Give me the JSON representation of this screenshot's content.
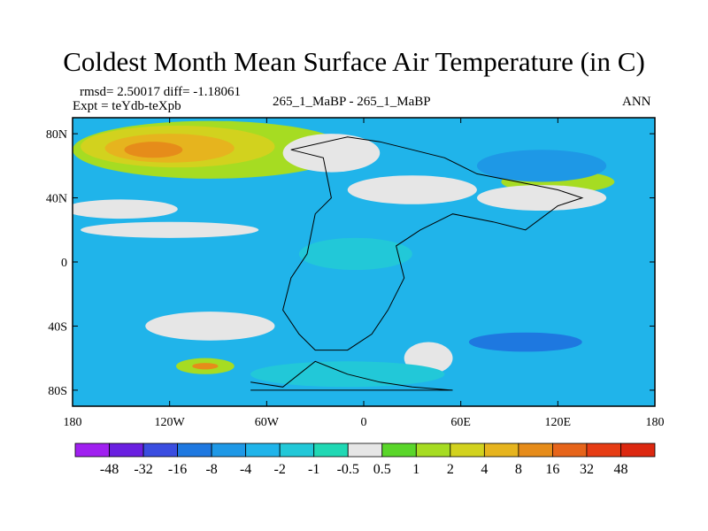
{
  "chart_data": {
    "type": "heatmap",
    "title": "Coldest Month Mean Surface Air Temperature (in C)",
    "stats_line": "rmsd= 2.50017  diff= -1.18061",
    "expt_line": "Expt = teYdb-teXpb",
    "center_label": "265_1_MaBP - 265_1_MaBP",
    "right_label": "ANN",
    "x_axis": {
      "range": [
        -180,
        180
      ],
      "ticks": [
        {
          "value": -180,
          "label": "180"
        },
        {
          "value": -120,
          "label": "120W"
        },
        {
          "value": -60,
          "label": "60W"
        },
        {
          "value": 0,
          "label": "0"
        },
        {
          "value": 60,
          "label": "60E"
        },
        {
          "value": 120,
          "label": "120E"
        },
        {
          "value": 180,
          "label": "180"
        }
      ]
    },
    "y_axis": {
      "range": [
        -90,
        90
      ],
      "ticks": [
        {
          "value": 80,
          "label": "80N"
        },
        {
          "value": 40,
          "label": "40N"
        },
        {
          "value": 0,
          "label": "0"
        },
        {
          "value": -40,
          "label": "40S"
        },
        {
          "value": -80,
          "label": "80S"
        }
      ]
    },
    "colorbar": {
      "levels": [
        "-48",
        "-32",
        "-16",
        "-8",
        "-4",
        "-2",
        "-1",
        "-0.5",
        "0.5",
        "1",
        "2",
        "4",
        "8",
        "16",
        "32",
        "48"
      ],
      "colors": [
        "#a020f0",
        "#6a1fe0",
        "#3a4de0",
        "#1e78e0",
        "#1e98e6",
        "#20b4ea",
        "#22c8d8",
        "#20d8b4",
        "#e6e6e6",
        "#5ad62a",
        "#a6dc22",
        "#d2d21e",
        "#e6b41e",
        "#e68c1a",
        "#e6641a",
        "#e63c14",
        "#dc2810"
      ]
    },
    "field": {
      "background_color": "#20b4ea",
      "regions": [
        {
          "name": "north-atlantic-warm",
          "color": "#a6dc22",
          "lon": -95,
          "lat": 70,
          "lon_radius": 85,
          "lat_radius": 18
        },
        {
          "name": "north-atlantic-yellow",
          "color": "#d2d21e",
          "lon": -115,
          "lat": 72,
          "lon_radius": 60,
          "lat_radius": 13
        },
        {
          "name": "north-atlantic-orange",
          "color": "#e6b41e",
          "lon": -120,
          "lat": 71,
          "lon_radius": 40,
          "lat_radius": 9
        },
        {
          "name": "north-atlantic-hot",
          "color": "#e68c1a",
          "lon": -130,
          "lat": 70,
          "lon_radius": 18,
          "lat_radius": 5
        },
        {
          "name": "arctic-neutral-band",
          "color": "#e6e6e6",
          "lon": -20,
          "lat": 68,
          "lon_radius": 30,
          "lat_radius": 12
        },
        {
          "name": "north-band-neutral",
          "color": "#e6e6e6",
          "lon": -150,
          "lat": 33,
          "lon_radius": 35,
          "lat_radius": 6
        },
        {
          "name": "mid-north-neutral",
          "color": "#e6e6e6",
          "lon": -120,
          "lat": 20,
          "lon_radius": 55,
          "lat_radius": 5
        },
        {
          "name": "east-north-green",
          "color": "#a6dc22",
          "lon": 120,
          "lat": 50,
          "lon_radius": 35,
          "lat_radius": 7
        },
        {
          "name": "east-north-neutral",
          "color": "#e6e6e6",
          "lon": 110,
          "lat": 40,
          "lon_radius": 40,
          "lat_radius": 8
        },
        {
          "name": "europe-neutral",
          "color": "#e6e6e6",
          "lon": 30,
          "lat": 45,
          "lon_radius": 40,
          "lat_radius": 9
        },
        {
          "name": "east-darkblue",
          "color": "#1e98e6",
          "lon": 110,
          "lat": 60,
          "lon_radius": 40,
          "lat_radius": 10
        },
        {
          "name": "equator-teal",
          "color": "#22c8d8",
          "lon": -5,
          "lat": 5,
          "lon_radius": 35,
          "lat_radius": 10
        },
        {
          "name": "south-pacific-neutral",
          "color": "#e6e6e6",
          "lon": -95,
          "lat": -40,
          "lon_radius": 40,
          "lat_radius": 9
        },
        {
          "name": "south-warm-green",
          "color": "#a6dc22",
          "lon": -98,
          "lat": -65,
          "lon_radius": 18,
          "lat_radius": 5
        },
        {
          "name": "south-warm-orange",
          "color": "#e68c1a",
          "lon": -98,
          "lat": -65,
          "lon_radius": 8,
          "lat_radius": 2
        },
        {
          "name": "south-mid-neutral",
          "color": "#e6e6e6",
          "lon": 40,
          "lat": -60,
          "lon_radius": 15,
          "lat_radius": 10
        },
        {
          "name": "south-east-blue",
          "color": "#1e78e0",
          "lon": 100,
          "lat": -50,
          "lon_radius": 35,
          "lat_radius": 6
        },
        {
          "name": "south-band-teal",
          "color": "#22c8d8",
          "lon": -10,
          "lat": -70,
          "lon_radius": 60,
          "lat_radius": 8
        }
      ]
    }
  }
}
